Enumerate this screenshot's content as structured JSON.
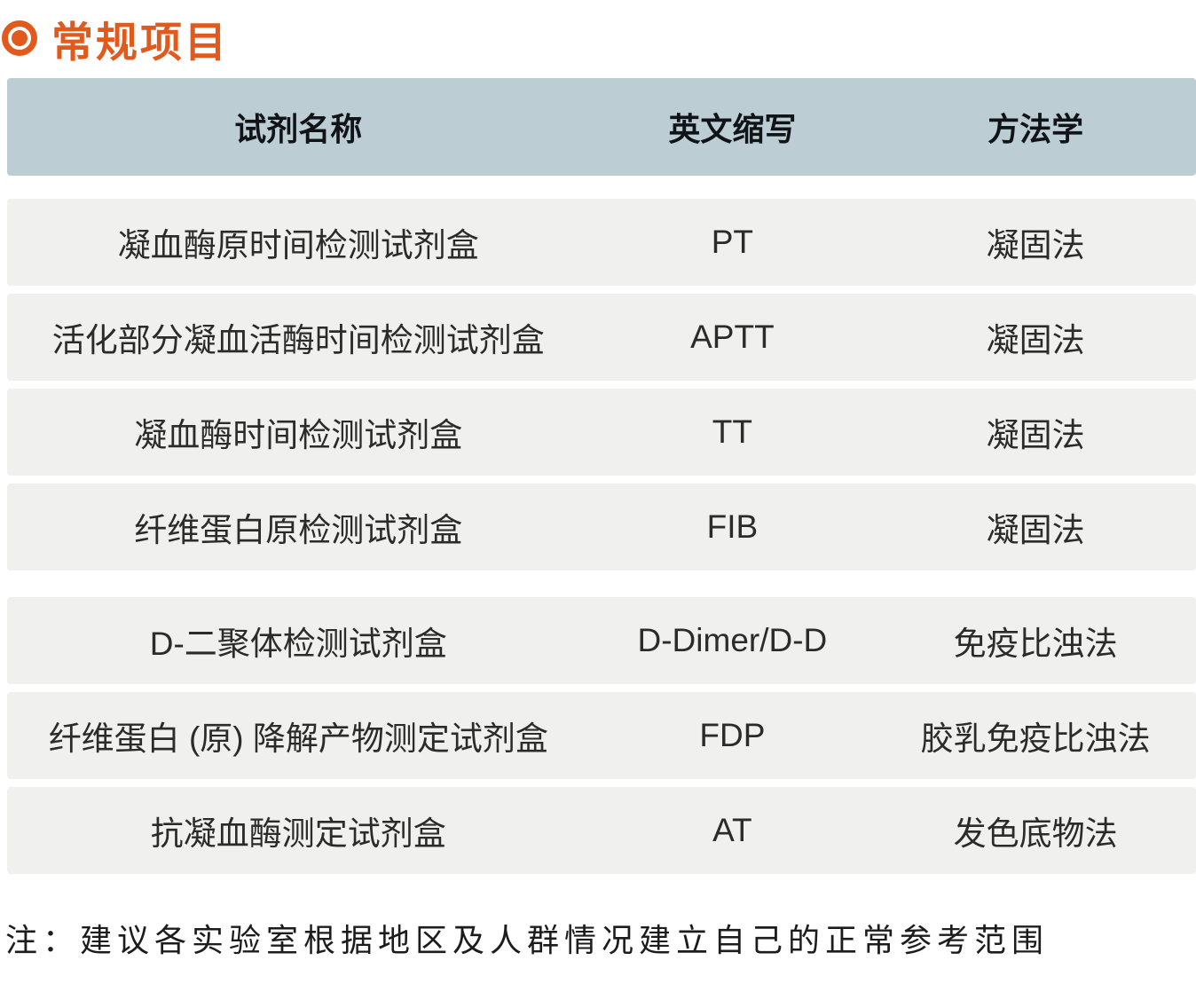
{
  "page": {
    "title": "常规项目",
    "accent_color": "#e2591d"
  },
  "table": {
    "header_bg_color": "#bccdd4",
    "row_bg_color": "#f0f0ef",
    "columns": [
      "试剂名称",
      "英文缩写",
      "方法学"
    ],
    "groups": [
      {
        "rows": [
          {
            "name": "凝血酶原时间检测试剂盒",
            "abbr": "PT",
            "method": "凝固法"
          },
          {
            "name": "活化部分凝血活酶时间检测试剂盒",
            "abbr": "APTT",
            "method": "凝固法"
          },
          {
            "name": "凝血酶时间检测试剂盒",
            "abbr": "TT",
            "method": "凝固法"
          },
          {
            "name": "纤维蛋白原检测试剂盒",
            "abbr": "FIB",
            "method": "凝固法"
          }
        ]
      },
      {
        "rows": [
          {
            "name": "D-二聚体检测试剂盒",
            "abbr": "D-Dimer/D-D",
            "method": "免疫比浊法"
          },
          {
            "name": "纤维蛋白 (原) 降解产物测定试剂盒",
            "abbr": "FDP",
            "method": "胶乳免疫比浊法"
          },
          {
            "name": "抗凝血酶测定试剂盒",
            "abbr": "AT",
            "method": "发色底物法"
          }
        ]
      }
    ]
  },
  "note": "注：建议各实验室根据地区及人群情况建立自己的正常参考范围"
}
